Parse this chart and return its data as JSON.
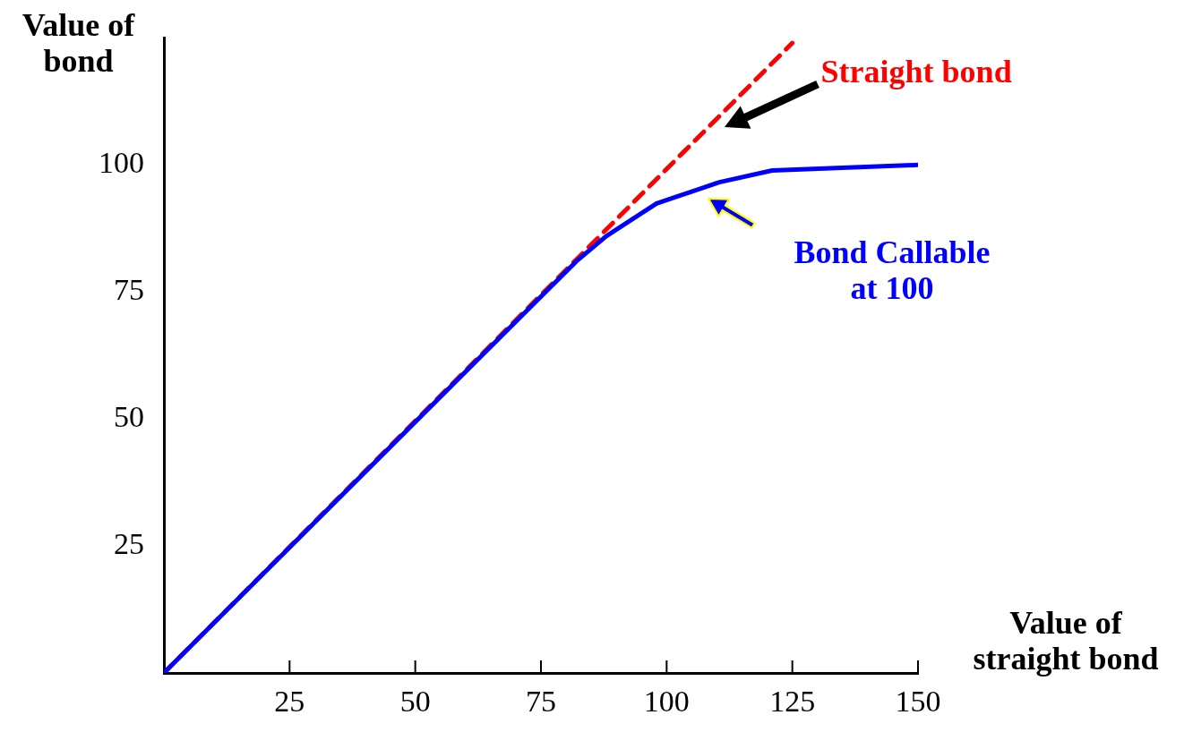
{
  "chart_data": {
    "type": "line",
    "xlabel": "Value of\nstraight bond",
    "ylabel": "Value of\nbond",
    "xlim": [
      0,
      150
    ],
    "ylim": [
      0,
      125
    ],
    "xticks": [
      25,
      50,
      75,
      100,
      125,
      150
    ],
    "yticks": [
      25,
      50,
      75,
      100
    ],
    "grid": false,
    "legend": false,
    "marker": "none",
    "series": [
      {
        "color": "#ff0000",
        "line_style": "dashed",
        "x": [
          0,
          125
        ],
        "values": [
          0,
          124
        ]
      },
      {
        "color": "#0000ff",
        "line_style": "solid",
        "x": [
          0,
          82,
          88,
          98,
          110.5,
          121,
          150
        ],
        "values": [
          0,
          81,
          86,
          92.4,
          96.6,
          98.9,
          100
        ]
      }
    ],
    "annotations": [
      "Straight bond",
      "Bond Callable\nat 100"
    ]
  }
}
